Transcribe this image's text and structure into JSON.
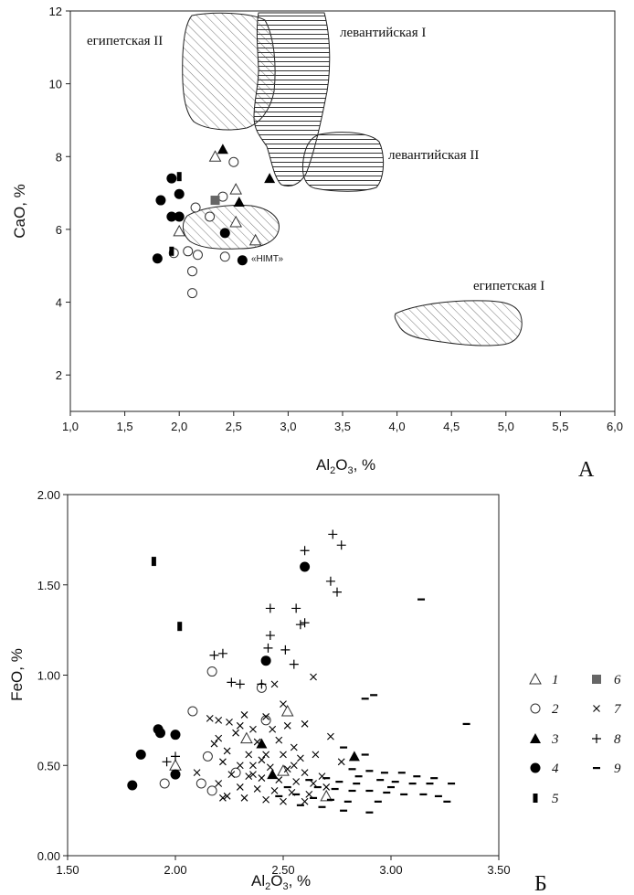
{
  "chart_data": [
    {
      "type": "scatter",
      "panel_letter": "А",
      "xlabel_main": "Al",
      "xlabel_sub": "2",
      "xlabel_mid": "O",
      "xlabel_sub2": "3",
      "xlabel_tail": ", %",
      "ylabel": "CaO, %",
      "xlim": [
        1.0,
        6.0
      ],
      "ylim": [
        1,
        12
      ],
      "xticks": [
        "1,0",
        "1,5",
        "2,0",
        "2,5",
        "3,0",
        "3,5",
        "4,0",
        "4,5",
        "5,0",
        "5,5",
        "6,0"
      ],
      "yticks": [
        "2",
        "4",
        "6",
        "8",
        "10",
        "12"
      ],
      "regions": [
        {
          "name": "египетская II",
          "hatch": "diagonal"
        },
        {
          "name": "левантийская I",
          "hatch": "horizontal"
        },
        {
          "name": "левантийская II",
          "hatch": "horizontal"
        },
        {
          "name": "египетская I",
          "hatch": "diagonal"
        },
        {
          "name": "«НІМТ»",
          "hatch": "diagonal"
        }
      ],
      "points": [
        {
          "x": 2.33,
          "y": 8.0,
          "g": 1
        },
        {
          "x": 2.52,
          "y": 7.1,
          "g": 1
        },
        {
          "x": 2.52,
          "y": 6.2,
          "g": 1
        },
        {
          "x": 2.0,
          "y": 5.95,
          "g": 1
        },
        {
          "x": 2.7,
          "y": 5.7,
          "g": 1
        },
        {
          "x": 2.5,
          "y": 7.85,
          "g": 2
        },
        {
          "x": 2.4,
          "y": 6.9,
          "g": 2
        },
        {
          "x": 2.15,
          "y": 6.6,
          "g": 2
        },
        {
          "x": 2.28,
          "y": 6.35,
          "g": 2
        },
        {
          "x": 2.08,
          "y": 5.4,
          "g": 2
        },
        {
          "x": 2.17,
          "y": 5.3,
          "g": 2
        },
        {
          "x": 2.42,
          "y": 5.25,
          "g": 2
        },
        {
          "x": 1.95,
          "y": 5.35,
          "g": 2
        },
        {
          "x": 2.12,
          "y": 4.85,
          "g": 2
        },
        {
          "x": 2.12,
          "y": 4.25,
          "g": 2
        },
        {
          "x": 2.4,
          "y": 8.2,
          "g": 3
        },
        {
          "x": 2.55,
          "y": 6.75,
          "g": 3
        },
        {
          "x": 2.83,
          "y": 7.4,
          "g": 3
        },
        {
          "x": 1.93,
          "y": 7.4,
          "g": 4
        },
        {
          "x": 1.83,
          "y": 6.8,
          "g": 4
        },
        {
          "x": 2.0,
          "y": 6.97,
          "g": 4
        },
        {
          "x": 1.93,
          "y": 6.35,
          "g": 4
        },
        {
          "x": 2.0,
          "y": 6.35,
          "g": 4
        },
        {
          "x": 2.42,
          "y": 5.9,
          "g": 4
        },
        {
          "x": 1.8,
          "y": 5.2,
          "g": 4
        },
        {
          "x": 2.58,
          "y": 5.15,
          "g": 4
        },
        {
          "x": 2.0,
          "y": 7.45,
          "g": 5
        },
        {
          "x": 1.93,
          "y": 5.4,
          "g": 5
        },
        {
          "x": 2.33,
          "y": 6.8,
          "g": 6
        }
      ]
    },
    {
      "type": "scatter",
      "panel_letter": "Б",
      "xlabel_main": "Al",
      "xlabel_sub": "2",
      "xlabel_mid": "O",
      "xlabel_sub2": "3",
      "xlabel_tail": ", %",
      "ylabel": "FeO, %",
      "xlim": [
        1.5,
        3.5
      ],
      "ylim": [
        0,
        2
      ],
      "xticks": [
        "1.50",
        "2.00",
        "2.50",
        "3.00",
        "3.50"
      ],
      "yticks": [
        "0.00",
        "0.50",
        "1.00",
        "1.50",
        "2.00"
      ],
      "legend": [
        {
          "id": 1,
          "label": "1"
        },
        {
          "id": 2,
          "label": "2"
        },
        {
          "id": 3,
          "label": "3"
        },
        {
          "id": 4,
          "label": "4"
        },
        {
          "id": 5,
          "label": "5"
        },
        {
          "id": 6,
          "label": "6"
        },
        {
          "id": 7,
          "label": "7"
        },
        {
          "id": 8,
          "label": "8"
        },
        {
          "id": 9,
          "label": "9"
        }
      ],
      "points": [
        {
          "x": 2.0,
          "y": 0.5,
          "g": 1
        },
        {
          "x": 2.33,
          "y": 0.65,
          "g": 1
        },
        {
          "x": 2.5,
          "y": 0.47,
          "g": 1
        },
        {
          "x": 2.52,
          "y": 0.8,
          "g": 1
        },
        {
          "x": 2.7,
          "y": 0.33,
          "g": 1
        },
        {
          "x": 2.17,
          "y": 1.02,
          "g": 2
        },
        {
          "x": 2.08,
          "y": 0.8,
          "g": 2
        },
        {
          "x": 2.15,
          "y": 0.55,
          "g": 2
        },
        {
          "x": 2.28,
          "y": 0.46,
          "g": 2
        },
        {
          "x": 2.12,
          "y": 0.4,
          "g": 2
        },
        {
          "x": 2.17,
          "y": 0.36,
          "g": 2
        },
        {
          "x": 1.95,
          "y": 0.4,
          "g": 2
        },
        {
          "x": 2.4,
          "y": 0.93,
          "g": 2
        },
        {
          "x": 2.42,
          "y": 0.75,
          "g": 2
        },
        {
          "x": 2.4,
          "y": 0.62,
          "g": 3
        },
        {
          "x": 2.83,
          "y": 0.55,
          "g": 3
        },
        {
          "x": 2.45,
          "y": 0.45,
          "g": 3
        },
        {
          "x": 1.8,
          "y": 0.39,
          "g": 4
        },
        {
          "x": 1.84,
          "y": 0.56,
          "g": 4
        },
        {
          "x": 1.92,
          "y": 0.7,
          "g": 4
        },
        {
          "x": 1.93,
          "y": 0.68,
          "g": 4
        },
        {
          "x": 2.0,
          "y": 0.67,
          "g": 4
        },
        {
          "x": 2.0,
          "y": 0.45,
          "g": 4
        },
        {
          "x": 2.42,
          "y": 1.08,
          "g": 4
        },
        {
          "x": 2.6,
          "y": 1.6,
          "g": 4
        },
        {
          "x": 1.9,
          "y": 1.63,
          "g": 5
        },
        {
          "x": 2.02,
          "y": 1.27,
          "g": 5
        },
        {
          "x": 2.73,
          "y": 1.78,
          "g": 8
        },
        {
          "x": 2.77,
          "y": 1.72,
          "g": 8
        },
        {
          "x": 2.6,
          "y": 1.69,
          "g": 8
        },
        {
          "x": 2.72,
          "y": 1.52,
          "g": 8
        },
        {
          "x": 2.75,
          "y": 1.46,
          "g": 8
        },
        {
          "x": 2.44,
          "y": 1.37,
          "g": 8
        },
        {
          "x": 2.56,
          "y": 1.37,
          "g": 8
        },
        {
          "x": 2.6,
          "y": 1.29,
          "g": 8
        },
        {
          "x": 2.58,
          "y": 1.28,
          "g": 8
        },
        {
          "x": 2.44,
          "y": 1.22,
          "g": 8
        },
        {
          "x": 2.43,
          "y": 1.15,
          "g": 8
        },
        {
          "x": 2.51,
          "y": 1.14,
          "g": 8
        },
        {
          "x": 2.18,
          "y": 1.11,
          "g": 8
        },
        {
          "x": 2.22,
          "y": 1.12,
          "g": 8
        },
        {
          "x": 2.55,
          "y": 1.06,
          "g": 8
        },
        {
          "x": 2.4,
          "y": 0.95,
          "g": 8
        },
        {
          "x": 2.3,
          "y": 0.95,
          "g": 8
        },
        {
          "x": 2.26,
          "y": 0.96,
          "g": 8
        },
        {
          "x": 1.96,
          "y": 0.52,
          "g": 8
        },
        {
          "x": 2.0,
          "y": 0.55,
          "g": 8
        },
        {
          "x": 2.64,
          "y": 0.99,
          "g": 7
        },
        {
          "x": 2.46,
          "y": 0.95,
          "g": 7
        },
        {
          "x": 2.5,
          "y": 0.84,
          "g": 7
        },
        {
          "x": 2.16,
          "y": 0.76,
          "g": 7
        },
        {
          "x": 2.2,
          "y": 0.75,
          "g": 7
        },
        {
          "x": 2.25,
          "y": 0.74,
          "g": 7
        },
        {
          "x": 2.3,
          "y": 0.72,
          "g": 7
        },
        {
          "x": 2.36,
          "y": 0.7,
          "g": 7
        },
        {
          "x": 2.45,
          "y": 0.7,
          "g": 7
        },
        {
          "x": 2.52,
          "y": 0.72,
          "g": 7
        },
        {
          "x": 2.6,
          "y": 0.73,
          "g": 7
        },
        {
          "x": 2.2,
          "y": 0.65,
          "g": 7
        },
        {
          "x": 2.28,
          "y": 0.68,
          "g": 7
        },
        {
          "x": 2.38,
          "y": 0.63,
          "g": 7
        },
        {
          "x": 2.48,
          "y": 0.64,
          "g": 7
        },
        {
          "x": 2.55,
          "y": 0.6,
          "g": 7
        },
        {
          "x": 2.24,
          "y": 0.58,
          "g": 7
        },
        {
          "x": 2.34,
          "y": 0.56,
          "g": 7
        },
        {
          "x": 2.42,
          "y": 0.56,
          "g": 7
        },
        {
          "x": 2.5,
          "y": 0.56,
          "g": 7
        },
        {
          "x": 2.58,
          "y": 0.54,
          "g": 7
        },
        {
          "x": 2.22,
          "y": 0.52,
          "g": 7
        },
        {
          "x": 2.3,
          "y": 0.5,
          "g": 7
        },
        {
          "x": 2.36,
          "y": 0.5,
          "g": 7
        },
        {
          "x": 2.44,
          "y": 0.49,
          "g": 7
        },
        {
          "x": 2.52,
          "y": 0.48,
          "g": 7
        },
        {
          "x": 2.6,
          "y": 0.46,
          "g": 7
        },
        {
          "x": 2.26,
          "y": 0.45,
          "g": 7
        },
        {
          "x": 2.34,
          "y": 0.44,
          "g": 7
        },
        {
          "x": 2.4,
          "y": 0.43,
          "g": 7
        },
        {
          "x": 2.48,
          "y": 0.42,
          "g": 7
        },
        {
          "x": 2.56,
          "y": 0.41,
          "g": 7
        },
        {
          "x": 2.64,
          "y": 0.4,
          "g": 7
        },
        {
          "x": 2.2,
          "y": 0.4,
          "g": 7
        },
        {
          "x": 2.3,
          "y": 0.38,
          "g": 7
        },
        {
          "x": 2.38,
          "y": 0.37,
          "g": 7
        },
        {
          "x": 2.46,
          "y": 0.36,
          "g": 7
        },
        {
          "x": 2.54,
          "y": 0.35,
          "g": 7
        },
        {
          "x": 2.62,
          "y": 0.34,
          "g": 7
        },
        {
          "x": 2.24,
          "y": 0.33,
          "g": 7
        },
        {
          "x": 2.32,
          "y": 0.32,
          "g": 7
        },
        {
          "x": 2.42,
          "y": 0.31,
          "g": 7
        },
        {
          "x": 2.5,
          "y": 0.3,
          "g": 7
        },
        {
          "x": 2.6,
          "y": 0.3,
          "g": 7
        },
        {
          "x": 2.1,
          "y": 0.46,
          "g": 7
        },
        {
          "x": 2.68,
          "y": 0.44,
          "g": 7
        },
        {
          "x": 2.72,
          "y": 0.66,
          "g": 7
        },
        {
          "x": 2.77,
          "y": 0.52,
          "g": 7
        },
        {
          "x": 2.65,
          "y": 0.56,
          "g": 7
        },
        {
          "x": 2.7,
          "y": 0.38,
          "g": 7
        },
        {
          "x": 2.18,
          "y": 0.62,
          "g": 7
        },
        {
          "x": 2.42,
          "y": 0.77,
          "g": 7
        },
        {
          "x": 2.32,
          "y": 0.78,
          "g": 7
        },
        {
          "x": 2.36,
          "y": 0.45,
          "g": 7
        },
        {
          "x": 2.22,
          "y": 0.32,
          "g": 7
        },
        {
          "x": 2.4,
          "y": 0.53,
          "g": 7
        },
        {
          "x": 2.55,
          "y": 0.5,
          "g": 7
        },
        {
          "x": 3.14,
          "y": 1.42,
          "g": 9
        },
        {
          "x": 2.92,
          "y": 0.89,
          "g": 9
        },
        {
          "x": 2.88,
          "y": 0.87,
          "g": 9
        },
        {
          "x": 3.35,
          "y": 0.73,
          "g": 9
        },
        {
          "x": 2.78,
          "y": 0.6,
          "g": 9
        },
        {
          "x": 2.88,
          "y": 0.56,
          "g": 9
        },
        {
          "x": 2.82,
          "y": 0.48,
          "g": 9
        },
        {
          "x": 2.9,
          "y": 0.47,
          "g": 9
        },
        {
          "x": 2.97,
          "y": 0.46,
          "g": 9
        },
        {
          "x": 3.05,
          "y": 0.46,
          "g": 9
        },
        {
          "x": 3.12,
          "y": 0.44,
          "g": 9
        },
        {
          "x": 3.2,
          "y": 0.43,
          "g": 9
        },
        {
          "x": 2.85,
          "y": 0.44,
          "g": 9
        },
        {
          "x": 2.95,
          "y": 0.42,
          "g": 9
        },
        {
          "x": 3.02,
          "y": 0.41,
          "g": 9
        },
        {
          "x": 3.1,
          "y": 0.4,
          "g": 9
        },
        {
          "x": 3.18,
          "y": 0.4,
          "g": 9
        },
        {
          "x": 3.28,
          "y": 0.4,
          "g": 9
        },
        {
          "x": 2.62,
          "y": 0.42,
          "g": 9
        },
        {
          "x": 2.7,
          "y": 0.43,
          "g": 9
        },
        {
          "x": 2.76,
          "y": 0.41,
          "g": 9
        },
        {
          "x": 2.66,
          "y": 0.38,
          "g": 9
        },
        {
          "x": 2.74,
          "y": 0.37,
          "g": 9
        },
        {
          "x": 2.82,
          "y": 0.36,
          "g": 9
        },
        {
          "x": 2.9,
          "y": 0.36,
          "g": 9
        },
        {
          "x": 2.98,
          "y": 0.35,
          "g": 9
        },
        {
          "x": 3.06,
          "y": 0.34,
          "g": 9
        },
        {
          "x": 3.15,
          "y": 0.34,
          "g": 9
        },
        {
          "x": 3.22,
          "y": 0.33,
          "g": 9
        },
        {
          "x": 3.26,
          "y": 0.3,
          "g": 9
        },
        {
          "x": 2.56,
          "y": 0.34,
          "g": 9
        },
        {
          "x": 2.64,
          "y": 0.32,
          "g": 9
        },
        {
          "x": 2.72,
          "y": 0.31,
          "g": 9
        },
        {
          "x": 2.8,
          "y": 0.3,
          "g": 9
        },
        {
          "x": 2.58,
          "y": 0.28,
          "g": 9
        },
        {
          "x": 2.68,
          "y": 0.27,
          "g": 9
        },
        {
          "x": 2.78,
          "y": 0.25,
          "g": 9
        },
        {
          "x": 2.9,
          "y": 0.24,
          "g": 9
        },
        {
          "x": 2.52,
          "y": 0.38,
          "g": 9
        },
        {
          "x": 2.48,
          "y": 0.33,
          "g": 9
        },
        {
          "x": 2.84,
          "y": 0.4,
          "g": 9
        },
        {
          "x": 3.0,
          "y": 0.38,
          "g": 9
        },
        {
          "x": 2.94,
          "y": 0.3,
          "g": 9
        }
      ]
    }
  ]
}
